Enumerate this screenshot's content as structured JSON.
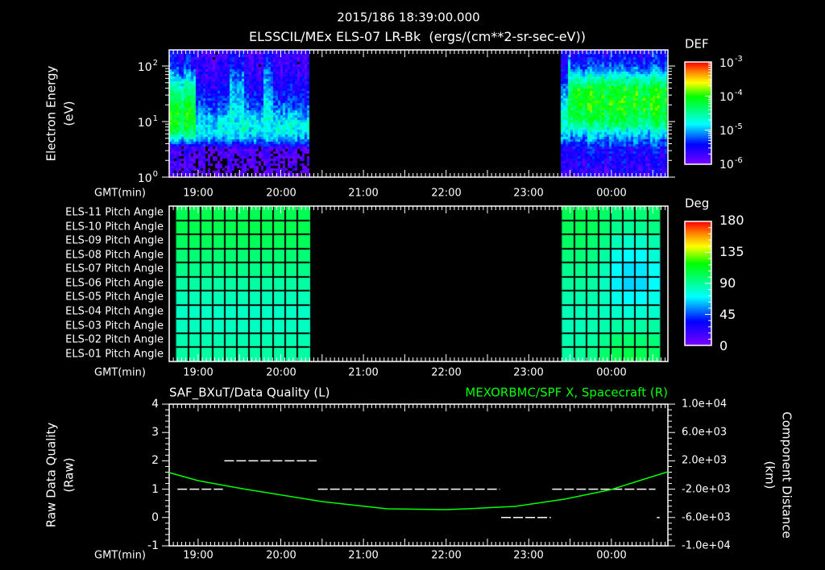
{
  "header": {
    "datetime": "2015/186 18:39:00.000",
    "title": "ELSSCIL/MEx ELS-07 LR-Bk  (ergs/(cm**2-sr-sec-eV))"
  },
  "colors": {
    "background": "#000000",
    "axes": "#ffffff",
    "quality_line": "#ffffff",
    "spacecraft_line": "#00ff00"
  },
  "chart_data": [
    {
      "id": "electron-energy-spectrogram",
      "type": "heatmap",
      "title": "ELSSCIL/MEx ELS-07 LR-Bk  (ergs/(cm**2-sr-sec-eV))",
      "xlabel": "GMT(min)",
      "ylabel": "Electron Energy",
      "yunits": "(eV)",
      "yscale": "log",
      "ylim": [
        1,
        195
      ],
      "xlim": [
        "18:39",
        "00:41"
      ],
      "xticks": [
        "19:00",
        "20:00",
        "21:00",
        "22:00",
        "23:00",
        "00:00"
      ],
      "yticks": [
        {
          "base": "10",
          "exp": "2",
          "value": 100
        },
        {
          "base": "10",
          "exp": "1",
          "value": 10
        },
        {
          "base": "10",
          "exp": "0",
          "value": 1
        }
      ],
      "colorbar": {
        "label": "DEF",
        "scale": "log",
        "range": [
          1e-06,
          0.001
        ],
        "ticks": [
          {
            "base": "10",
            "exp": "-3"
          },
          {
            "base": "10",
            "exp": "-4"
          },
          {
            "base": "10",
            "exp": "-5"
          },
          {
            "base": "10",
            "exp": "-6"
          }
        ]
      },
      "data_gaps": [
        [
          "20:21",
          "23:24"
        ]
      ],
      "segments": [
        {
          "start": "18:39",
          "end": "18:59",
          "profile": [
            [
              0,
              -5.9
            ],
            [
              0.55,
              -5.8
            ],
            [
              0.65,
              -5.0
            ],
            [
              0.8,
              -4.4
            ],
            [
              1.0,
              -4.15
            ],
            [
              1.3,
              -4.2
            ],
            [
              1.6,
              -4.6
            ],
            [
              1.85,
              -5.1
            ],
            [
              2.0,
              -5.45
            ],
            [
              2.3,
              -5.6
            ]
          ]
        },
        {
          "start": "18:59",
          "end": "19:23",
          "profile": [
            [
              0,
              -6.0
            ],
            [
              0.5,
              -5.9
            ],
            [
              0.65,
              -5.2
            ],
            [
              0.8,
              -4.85
            ],
            [
              1.0,
              -4.9
            ],
            [
              1.2,
              -5.2
            ],
            [
              1.5,
              -5.5
            ],
            [
              2.0,
              -5.75
            ],
            [
              2.3,
              -5.75
            ]
          ]
        },
        {
          "start": "19:23",
          "end": "19:33",
          "profile": [
            [
              0,
              -6.0
            ],
            [
              0.5,
              -5.9
            ],
            [
              0.7,
              -5.0
            ],
            [
              0.9,
              -4.8
            ],
            [
              1.3,
              -4.9
            ],
            [
              1.7,
              -5.1
            ],
            [
              2.0,
              -5.4
            ],
            [
              2.3,
              -5.7
            ]
          ]
        },
        {
          "start": "19:33",
          "end": "19:47",
          "profile": [
            [
              0,
              -6.0
            ],
            [
              0.5,
              -5.9
            ],
            [
              0.65,
              -5.2
            ],
            [
              0.8,
              -4.85
            ],
            [
              1.0,
              -4.9
            ],
            [
              1.2,
              -5.2
            ],
            [
              1.5,
              -5.5
            ],
            [
              2.0,
              -5.75
            ],
            [
              2.3,
              -5.75
            ]
          ]
        },
        {
          "start": "19:47",
          "end": "19:55",
          "profile": [
            [
              0,
              -6.0
            ],
            [
              0.5,
              -5.9
            ],
            [
              0.7,
              -5.0
            ],
            [
              0.9,
              -4.8
            ],
            [
              1.3,
              -4.95
            ],
            [
              1.7,
              -5.15
            ],
            [
              2.0,
              -5.4
            ],
            [
              2.3,
              -5.7
            ]
          ]
        },
        {
          "start": "19:55",
          "end": "20:21",
          "profile": [
            [
              0,
              -6.0
            ],
            [
              0.5,
              -5.9
            ],
            [
              0.65,
              -5.2
            ],
            [
              0.8,
              -4.85
            ],
            [
              1.0,
              -4.9
            ],
            [
              1.2,
              -5.2
            ],
            [
              1.5,
              -5.5
            ],
            [
              2.0,
              -5.75
            ],
            [
              2.3,
              -5.75
            ]
          ]
        },
        {
          "start": "23:24",
          "end": "23:28",
          "profile": [
            [
              0,
              -5.8
            ],
            [
              0.5,
              -5.6
            ],
            [
              0.7,
              -5.1
            ],
            [
              0.9,
              -4.8
            ],
            [
              1.1,
              -4.7
            ],
            [
              1.4,
              -5.0
            ],
            [
              1.8,
              -5.5
            ],
            [
              2.3,
              -5.7
            ]
          ]
        },
        {
          "start": "23:28",
          "end": "23:31",
          "profile": [
            [
              0,
              -5.8
            ],
            [
              0.5,
              -5.6
            ],
            [
              0.7,
              -5.0
            ],
            [
              0.9,
              -4.4
            ],
            [
              1.2,
              -4.3
            ],
            [
              1.6,
              -4.5
            ],
            [
              1.9,
              -4.7
            ],
            [
              2.1,
              -5.0
            ],
            [
              2.3,
              -5.5
            ]
          ]
        },
        {
          "start": "23:31",
          "end": "00:41",
          "profile": [
            [
              0,
              -5.7
            ],
            [
              0.5,
              -5.5
            ],
            [
              0.65,
              -5.2
            ],
            [
              0.8,
              -4.85
            ],
            [
              0.95,
              -4.4
            ],
            [
              1.1,
              -4.2
            ],
            [
              1.35,
              -4.05
            ],
            [
              1.6,
              -4.15
            ],
            [
              1.8,
              -4.7
            ],
            [
              2.0,
              -5.3
            ],
            [
              2.3,
              -5.6
            ]
          ]
        }
      ]
    },
    {
      "id": "pitch-angle-grid",
      "type": "heatmap",
      "xlabel": "GMT(min)",
      "xlim": [
        "18:39",
        "00:41"
      ],
      "xticks": [
        "19:00",
        "20:00",
        "21:00",
        "22:00",
        "23:00",
        "00:00"
      ],
      "rows": [
        "ELS-11 Pitch Angle",
        "ELS-10 Pitch Angle",
        "ELS-09 Pitch Angle",
        "ELS-08 Pitch Angle",
        "ELS-07 Pitch Angle",
        "ELS-06 Pitch Angle",
        "ELS-05 Pitch Angle",
        "ELS-04 Pitch Angle",
        "ELS-03 Pitch Angle",
        "ELS-02 Pitch Angle",
        "ELS-01 Pitch Angle"
      ],
      "colorbar": {
        "label": "Deg",
        "range": [
          0,
          180
        ],
        "ticks": [
          "180",
          "135",
          "90",
          "45",
          "0"
        ]
      },
      "blocks": [
        {
          "start": "18:44",
          "end": "20:21",
          "values": [
            [
              103,
              104,
              104,
              104,
              103,
              103,
              103,
              103,
              103,
              103,
              103
            ],
            [
              104,
              104,
              104,
              104,
              104,
              104,
              104,
              104,
              104,
              104,
              104
            ],
            [
              101,
              102,
              102,
              102,
              102,
              102,
              102,
              102,
              102,
              102,
              102
            ],
            [
              97,
              97,
              97,
              97,
              97,
              97,
              97,
              97,
              97,
              97,
              97
            ],
            [
              93,
              93,
              93,
              93,
              93,
              93,
              93,
              93,
              93,
              93,
              93
            ],
            [
              88,
              88,
              88,
              88,
              88,
              88,
              88,
              88,
              88,
              88,
              88
            ],
            [
              84,
              84,
              84,
              84,
              84,
              84,
              84,
              84,
              84,
              84,
              84
            ],
            [
              81,
              81,
              81,
              81,
              81,
              81,
              81,
              81,
              81,
              81,
              81
            ],
            [
              82,
              82,
              82,
              82,
              82,
              82,
              82,
              82,
              82,
              82,
              82
            ],
            [
              85,
              85,
              85,
              85,
              85,
              85,
              85,
              85,
              85,
              85,
              85
            ],
            [
              88,
              88,
              88,
              88,
              88,
              88,
              88,
              88,
              88,
              88,
              88
            ]
          ]
        },
        {
          "start": "23:24",
          "end": "00:35",
          "values": [
            [
              103,
              104,
              103,
              100,
              96,
              96,
              97,
              99
            ],
            [
              102,
              103,
              102,
              98,
              92,
              90,
              91,
              94
            ],
            [
              100,
              100,
              98,
              94,
              84,
              80,
              81,
              86
            ],
            [
              96,
              96,
              94,
              88,
              74,
              70,
              71,
              78
            ],
            [
              92,
              92,
              90,
              84,
              70,
              66,
              67,
              72
            ],
            [
              89,
              89,
              88,
              82,
              68,
              64,
              65,
              70
            ],
            [
              86,
              86,
              86,
              82,
              74,
              70,
              71,
              74
            ],
            [
              84,
              84,
              84,
              82,
              80,
              78,
              79,
              80
            ],
            [
              84,
              84,
              85,
              86,
              88,
              88,
              88,
              88
            ],
            [
              86,
              86,
              88,
              92,
              98,
              99,
              97,
              96
            ],
            [
              88,
              90,
              93,
              98,
              104,
              105,
              103,
              100
            ]
          ]
        }
      ]
    },
    {
      "id": "data-quality-and-spacecraft-position",
      "type": "line",
      "title_left": "SAF_BXuT/Data Quality (L)",
      "title_right": "MEXORBMC/SPF X, Spacecraft (R)",
      "xlabel": "GMT(min)",
      "ylabel_left": "Raw Data Quality",
      "yunits_left": "(Raw)",
      "ylabel_right": "Component Distance",
      "yunits_right": "(km)",
      "xlim": [
        "18:39",
        "00:41"
      ],
      "xticks": [
        "19:00",
        "20:00",
        "21:00",
        "22:00",
        "23:00",
        "00:00"
      ],
      "ylim_left": [
        -1,
        4
      ],
      "ylim_right": [
        -10000,
        10000
      ],
      "yticks_left": [
        "4",
        "3",
        "2",
        "1",
        "0",
        "-1"
      ],
      "yticks_right": [
        "1.0e+04",
        "6.0e+03",
        "2.0e+03",
        "-2.0e+03",
        "-6.0e+03",
        "-1.0e+04"
      ],
      "series": [
        {
          "name": "SAF_BXuT/Data Quality",
          "axis": "left",
          "style": "dashed",
          "color": "#ffffff",
          "segments": [
            {
              "start": "18:45",
              "end": "19:18",
              "value": 1
            },
            {
              "start": "19:19",
              "end": "20:26",
              "value": 2
            },
            {
              "start": "20:27",
              "end": "22:39",
              "value": 1
            },
            {
              "start": "22:40",
              "end": "23:16",
              "value": 0
            },
            {
              "start": "23:17",
              "end": "00:32",
              "value": 1
            },
            {
              "start": "00:33",
              "end": "00:35",
              "value": 0
            }
          ]
        },
        {
          "name": "MEXORBMC/SPF X, Spacecraft",
          "axis": "right",
          "style": "solid",
          "color": "#00ff00",
          "x": [
            "18:39",
            "19:00",
            "19:32",
            "20:30",
            "21:17",
            "22:00",
            "22:15",
            "22:50",
            "23:26",
            "00:00",
            "00:24",
            "00:41"
          ],
          "values": [
            340,
            -800,
            -1930,
            -3750,
            -4770,
            -4890,
            -4770,
            -4430,
            -3410,
            -2045,
            -570,
            455
          ]
        }
      ]
    }
  ]
}
